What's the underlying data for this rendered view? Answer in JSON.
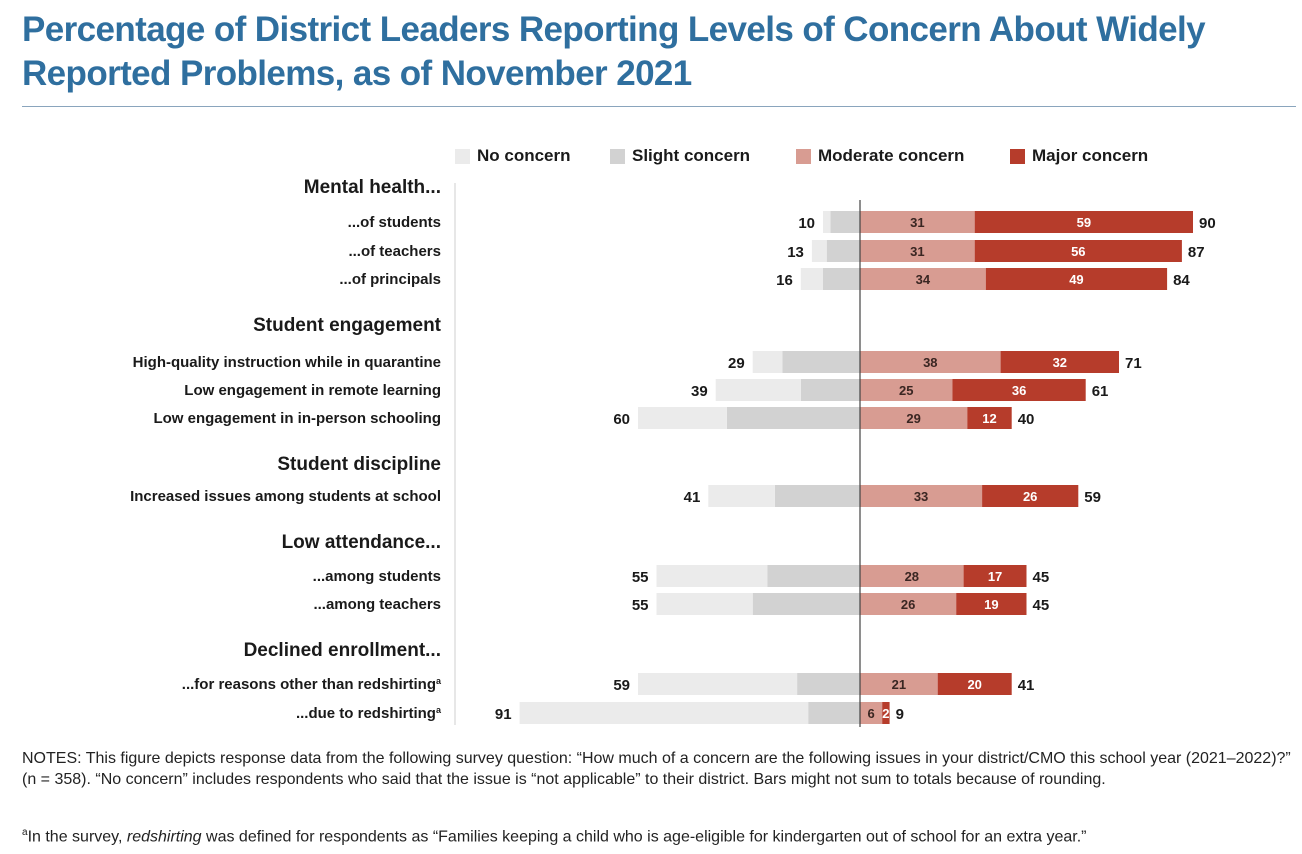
{
  "title": "Percentage of District Leaders Reporting Levels of Concern About Widely Reported Problems, as of November 2021",
  "legend": [
    {
      "label": "No concern",
      "color": "#ebebeb"
    },
    {
      "label": "Slight concern",
      "color": "#d2d2d2"
    },
    {
      "label": "Moderate concern",
      "color": "#d89c92"
    },
    {
      "label": "Major concern",
      "color": "#b63c2b"
    }
  ],
  "chart_data": {
    "type": "bar",
    "orientation": "horizontal-diverging",
    "stacked": true,
    "series_names": [
      "No concern",
      "Slight concern",
      "Moderate concern",
      "Major concern"
    ],
    "groups": [
      {
        "heading": "Mental health...",
        "rows": [
          {
            "label": "...of students",
            "no_concern": 2,
            "slight_concern": 8,
            "moderate_concern": 31,
            "major_concern": 59,
            "left_total": 10,
            "right_total": 90
          },
          {
            "label": "...of teachers",
            "no_concern": 4,
            "slight_concern": 9,
            "moderate_concern": 31,
            "major_concern": 56,
            "left_total": 13,
            "right_total": 87
          },
          {
            "label": "...of principals",
            "no_concern": 6,
            "slight_concern": 10,
            "moderate_concern": 34,
            "major_concern": 49,
            "left_total": 16,
            "right_total": 84
          }
        ]
      },
      {
        "heading": "Student engagement",
        "rows": [
          {
            "label": "High-quality instruction while in quarantine",
            "no_concern": 8,
            "slight_concern": 21,
            "moderate_concern": 38,
            "major_concern": 32,
            "left_total": 29,
            "right_total": 71
          },
          {
            "label": "Low engagement in remote learning",
            "no_concern": 23,
            "slight_concern": 16,
            "moderate_concern": 25,
            "major_concern": 36,
            "left_total": 39,
            "right_total": 61
          },
          {
            "label": "Low engagement in in-person schooling",
            "no_concern": 24,
            "slight_concern": 36,
            "moderate_concern": 29,
            "major_concern": 12,
            "left_total": 60,
            "right_total": 40
          }
        ]
      },
      {
        "heading": "Student discipline",
        "rows": [
          {
            "label": "Increased issues among students at school",
            "no_concern": 18,
            "slight_concern": 23,
            "moderate_concern": 33,
            "major_concern": 26,
            "left_total": 41,
            "right_total": 59
          }
        ]
      },
      {
        "heading": "Low attendance...",
        "rows": [
          {
            "label": "...among students",
            "no_concern": 30,
            "slight_concern": 25,
            "moderate_concern": 28,
            "major_concern": 17,
            "left_total": 55,
            "right_total": 45
          },
          {
            "label": "...among teachers",
            "no_concern": 26,
            "slight_concern": 29,
            "moderate_concern": 26,
            "major_concern": 19,
            "left_total": 55,
            "right_total": 45
          }
        ]
      },
      {
        "heading": "Declined enrollment...",
        "rows": [
          {
            "label": "...for reasons other than redshirting",
            "sup": "a",
            "no_concern": 43,
            "slight_concern": 17,
            "moderate_concern": 21,
            "major_concern": 20,
            "left_total": 59,
            "right_total": 41
          },
          {
            "label": "...due to redshirting",
            "sup": "a",
            "no_concern": 78,
            "slight_concern": 14,
            "moderate_concern": 6,
            "major_concern": 2,
            "left_total": 91,
            "right_total": 9
          }
        ]
      }
    ]
  },
  "notes": "NOTES: This figure depicts response data from the following survey question: “How much of a concern are the following issues in your district/CMO this school year (2021–2022)?” (n = 358). “No concern” includes respondents who said that the issue is “not applicable” to their district. Bars might not sum to totals because of rounding.",
  "footnote": {
    "marker": "a",
    "text_before": "In the survey, ",
    "term": "redshirting",
    "text_after": " was defined for respondents as “Families keeping a child who is age-eligible for kindergarten out of school for an extra year.”"
  }
}
